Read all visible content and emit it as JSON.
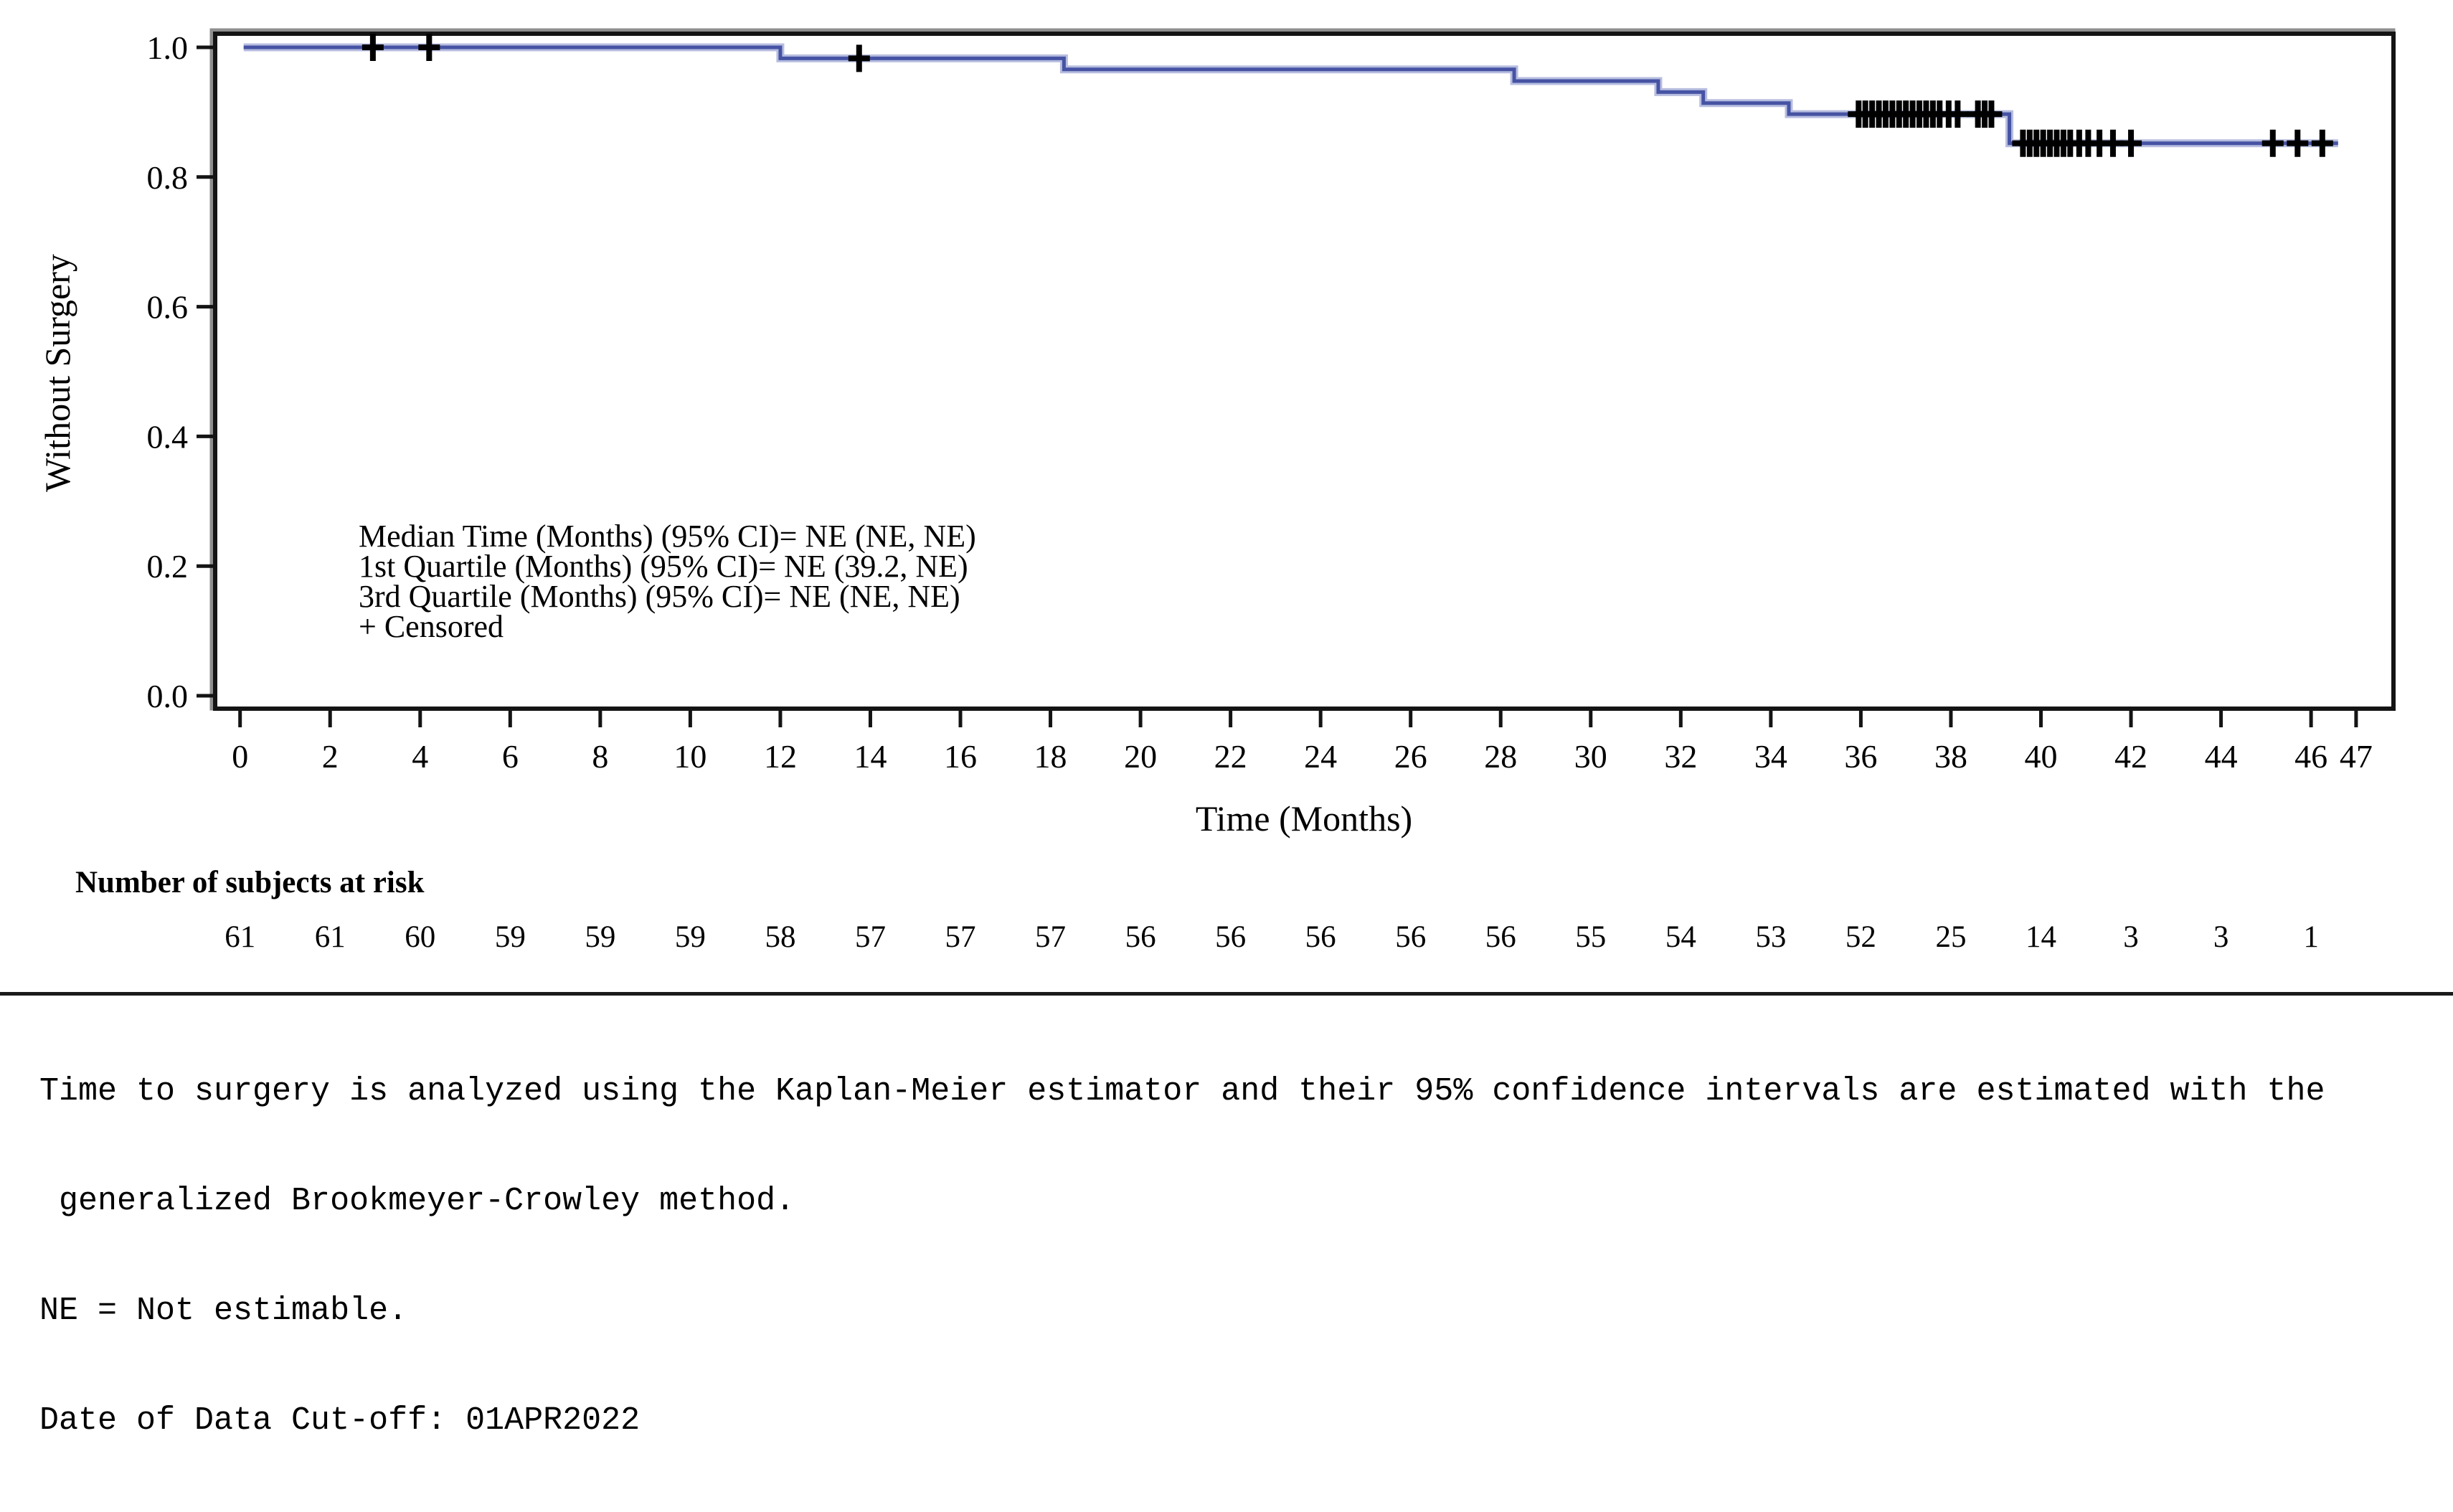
{
  "chart_data": {
    "type": "line",
    "subtype": "kaplan-meier-step",
    "title": "",
    "xlabel": "Time (Months)",
    "ylabel": "Without Surgery",
    "xlim": [
      0,
      47
    ],
    "ylim": [
      0.0,
      1.0
    ],
    "grid": false,
    "x_ticks": [
      0,
      2,
      4,
      6,
      8,
      10,
      12,
      14,
      16,
      18,
      20,
      22,
      24,
      26,
      28,
      30,
      32,
      34,
      36,
      38,
      40,
      42,
      44,
      46,
      47
    ],
    "y_ticks": [
      0.0,
      0.2,
      0.4,
      0.6,
      0.8,
      1.0
    ],
    "colors": {
      "curve": "#4653a4",
      "curve_halo": "#b7bddf",
      "censor": "#000000",
      "frame": "#141414",
      "frame_shadow": "#8f8f8f",
      "text": "#000000"
    },
    "series": [
      {
        "name": "Without Surgery",
        "color": "#4653a4",
        "start": [
          0,
          1.0
        ],
        "end_time": 46.6,
        "steps": [
          [
            12.0,
            0.983
          ],
          [
            18.3,
            0.966
          ],
          [
            28.3,
            0.948
          ],
          [
            31.5,
            0.931
          ],
          [
            32.5,
            0.914
          ],
          [
            34.4,
            0.897
          ],
          [
            39.3,
            0.852
          ]
        ]
      }
    ],
    "censored": {
      "marker": "+",
      "legend": "+ Censored",
      "points": [
        [
          2.95,
          1.0
        ],
        [
          4.2,
          1.0
        ],
        [
          13.75,
          0.983
        ],
        [
          35.95,
          0.897
        ],
        [
          36.1,
          0.897
        ],
        [
          36.25,
          0.897
        ],
        [
          36.4,
          0.897
        ],
        [
          36.55,
          0.897
        ],
        [
          36.7,
          0.897
        ],
        [
          36.85,
          0.897
        ],
        [
          37.0,
          0.897
        ],
        [
          37.15,
          0.897
        ],
        [
          37.3,
          0.897
        ],
        [
          37.45,
          0.897
        ],
        [
          37.6,
          0.897
        ],
        [
          37.75,
          0.897
        ],
        [
          37.95,
          0.897
        ],
        [
          38.15,
          0.897
        ],
        [
          38.6,
          0.897
        ],
        [
          38.75,
          0.897
        ],
        [
          38.9,
          0.897
        ],
        [
          39.6,
          0.852
        ],
        [
          39.75,
          0.852
        ],
        [
          39.9,
          0.852
        ],
        [
          40.05,
          0.852
        ],
        [
          40.2,
          0.852
        ],
        [
          40.35,
          0.852
        ],
        [
          40.5,
          0.852
        ],
        [
          40.65,
          0.852
        ],
        [
          40.85,
          0.852
        ],
        [
          41.05,
          0.852
        ],
        [
          41.3,
          0.852
        ],
        [
          41.6,
          0.852
        ],
        [
          42.0,
          0.852
        ],
        [
          45.15,
          0.852
        ],
        [
          45.7,
          0.852
        ],
        [
          46.25,
          0.852
        ]
      ]
    },
    "annotations": {
      "lines": [
        "Median Time (Months) (95% CI)= NE (NE, NE)",
        "1st Quartile (Months) (95% CI)= NE (39.2, NE)",
        "3rd Quartile (Months) (95% CI)= NE (NE, NE)",
        "+ Censored"
      ]
    },
    "at_risk": {
      "header": "Number of subjects at risk",
      "times": [
        0,
        2,
        4,
        6,
        8,
        10,
        12,
        14,
        16,
        18,
        20,
        22,
        24,
        26,
        28,
        30,
        32,
        34,
        36,
        38,
        40,
        42,
        44,
        46
      ],
      "values": [
        61,
        61,
        60,
        59,
        59,
        59,
        58,
        57,
        57,
        57,
        56,
        56,
        56,
        56,
        56,
        55,
        54,
        53,
        52,
        25,
        14,
        3,
        3,
        1
      ]
    }
  },
  "footnotes": {
    "lines": [
      "Time to surgery is analyzed using the Kaplan-Meier estimator and their 95% confidence intervals are estimated with the",
      " generalized Brookmeyer-Crowley method.",
      "NE = Not estimable.",
      "Date of Data Cut-off: 01APR2022"
    ]
  }
}
